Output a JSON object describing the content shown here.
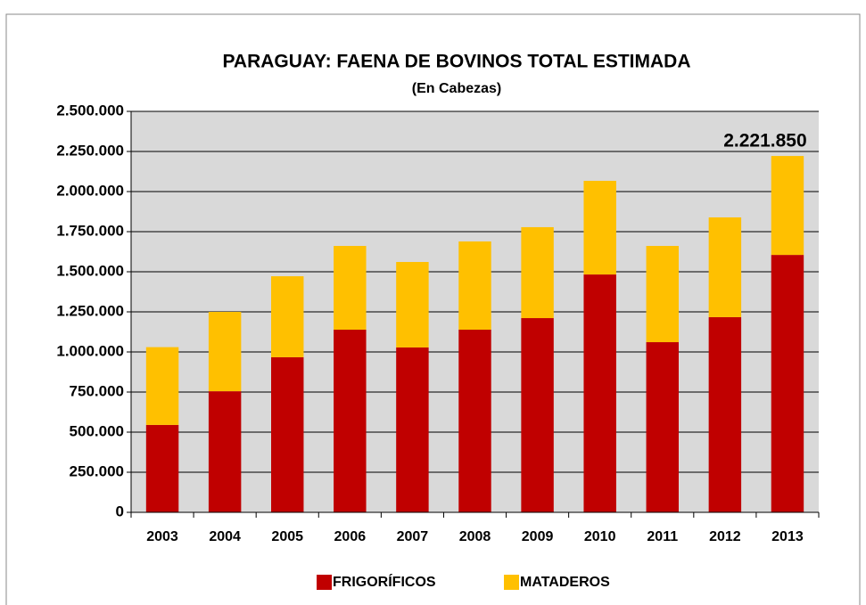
{
  "chart_data": {
    "type": "stacked_bar",
    "title": "PARAGUAY:  FAENA DE BOVINOS TOTAL ESTIMADA",
    "subtitle": "(En Cabezas)",
    "categories": [
      "2003",
      "2004",
      "2005",
      "2006",
      "2007",
      "2008",
      "2009",
      "2010",
      "2011",
      "2012",
      "2013"
    ],
    "series": [
      {
        "name": "FRIGORÍFICOS",
        "color": "#c00000",
        "values": [
          545000,
          755000,
          967000,
          1139000,
          1028000,
          1139000,
          1211000,
          1483000,
          1061000,
          1217000,
          1605000
        ]
      },
      {
        "name": "MATADEROS",
        "color": "#ffc000",
        "values": [
          485000,
          495000,
          505000,
          522000,
          533000,
          550000,
          567000,
          584000,
          600000,
          622000,
          616850
        ]
      }
    ],
    "annotations": [
      {
        "text": "2.221.850"
      }
    ],
    "ylim": [
      0,
      2500000
    ],
    "yticks": [
      0,
      {
        "value": 250000,
        "label": "250.000"
      },
      {
        "value": 500000,
        "label": "500.000"
      },
      {
        "value": 750000,
        "label": "750.000"
      },
      {
        "value": 1000000,
        "label": "1.000.000"
      },
      {
        "value": 1250000,
        "label": "1.250.000"
      },
      {
        "value": 1500000,
        "label": "1.500.000"
      },
      {
        "value": 1750000,
        "label": "1.750.000"
      },
      {
        "value": 2000000,
        "label": "2.000.000"
      },
      {
        "value": 2250000,
        "label": "2.250.000"
      },
      {
        "value": 2500000,
        "label": "2.500.000"
      }
    ],
    "grid": true,
    "legend": "bottom"
  }
}
